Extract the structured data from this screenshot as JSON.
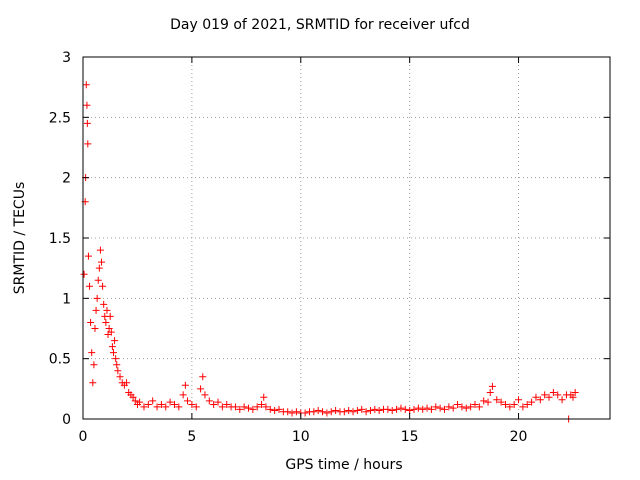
{
  "chart_data": {
    "type": "scatter",
    "title": "Day 019 of 2021, SRMTID for receiver ufcd",
    "xlabel": "GPS time / hours",
    "ylabel": "SRMTID / TECUs",
    "xlim": [
      0,
      24.2
    ],
    "ylim": [
      0,
      3
    ],
    "xticks": [
      0,
      5,
      10,
      15,
      20
    ],
    "yticks": [
      0,
      0.5,
      1,
      1.5,
      2,
      2.5,
      3
    ],
    "ytick_labels": [
      "0",
      "0.5",
      "1",
      "1.5",
      "2",
      "2.5",
      "3"
    ],
    "grid": true,
    "marker": "+",
    "color": "#ff0000",
    "series": [
      {
        "name": "SRMTID",
        "x": [
          0.05,
          0.1,
          0.12,
          0.15,
          0.18,
          0.2,
          0.22,
          0.25,
          0.3,
          0.35,
          0.4,
          0.45,
          0.5,
          0.55,
          0.6,
          0.65,
          0.7,
          0.75,
          0.8,
          0.85,
          0.9,
          0.95,
          1.0,
          1.05,
          1.1,
          1.15,
          1.2,
          1.25,
          1.3,
          1.35,
          1.4,
          1.45,
          1.5,
          1.55,
          1.6,
          1.7,
          1.8,
          1.9,
          2.0,
          2.1,
          2.2,
          2.3,
          2.4,
          2.5,
          2.6,
          2.8,
          3.0,
          3.2,
          3.4,
          3.6,
          3.8,
          4.0,
          4.2,
          4.4,
          4.6,
          4.7,
          4.8,
          5.0,
          5.2,
          5.4,
          5.5,
          5.6,
          5.8,
          6.0,
          6.2,
          6.4,
          6.6,
          6.8,
          7.0,
          7.2,
          7.4,
          7.6,
          7.8,
          8.0,
          8.2,
          8.3,
          8.4,
          8.6,
          8.8,
          9.0,
          9.2,
          9.4,
          9.6,
          9.8,
          10.0,
          10.2,
          10.4,
          10.6,
          10.8,
          11.0,
          11.2,
          11.4,
          11.6,
          11.8,
          12.0,
          12.2,
          12.4,
          12.6,
          12.8,
          13.0,
          13.2,
          13.4,
          13.6,
          13.8,
          14.0,
          14.2,
          14.4,
          14.6,
          14.8,
          15.0,
          15.2,
          15.4,
          15.6,
          15.8,
          16.0,
          16.2,
          16.4,
          16.6,
          16.8,
          17.0,
          17.2,
          17.4,
          17.6,
          17.8,
          18.0,
          18.2,
          18.4,
          18.6,
          18.7,
          18.8,
          19.0,
          19.2,
          19.4,
          19.6,
          19.8,
          20.0,
          20.2,
          20.4,
          20.6,
          20.8,
          21.0,
          21.2,
          21.4,
          21.6,
          21.8,
          22.0,
          22.2,
          22.3,
          22.4,
          22.5,
          22.6
        ],
        "y": [
          1.2,
          1.8,
          2.0,
          2.77,
          2.6,
          2.45,
          2.28,
          1.35,
          1.1,
          0.8,
          0.55,
          0.3,
          0.45,
          0.75,
          0.9,
          1.0,
          1.15,
          1.25,
          1.4,
          1.3,
          1.1,
          0.95,
          0.85,
          0.8,
          0.9,
          0.7,
          0.75,
          0.85,
          0.72,
          0.6,
          0.55,
          0.65,
          0.5,
          0.45,
          0.4,
          0.35,
          0.3,
          0.28,
          0.3,
          0.22,
          0.2,
          0.18,
          0.15,
          0.12,
          0.14,
          0.1,
          0.12,
          0.15,
          0.1,
          0.12,
          0.1,
          0.14,
          0.12,
          0.1,
          0.2,
          0.28,
          0.15,
          0.12,
          0.1,
          0.25,
          0.35,
          0.2,
          0.15,
          0.12,
          0.14,
          0.1,
          0.12,
          0.1,
          0.1,
          0.08,
          0.1,
          0.09,
          0.08,
          0.1,
          0.12,
          0.18,
          0.1,
          0.08,
          0.07,
          0.08,
          0.06,
          0.06,
          0.05,
          0.06,
          0.05,
          0.05,
          0.06,
          0.06,
          0.07,
          0.06,
          0.05,
          0.06,
          0.07,
          0.06,
          0.06,
          0.07,
          0.06,
          0.07,
          0.08,
          0.06,
          0.07,
          0.08,
          0.07,
          0.08,
          0.08,
          0.07,
          0.08,
          0.09,
          0.08,
          0.07,
          0.08,
          0.09,
          0.08,
          0.09,
          0.08,
          0.1,
          0.09,
          0.08,
          0.1,
          0.09,
          0.12,
          0.1,
          0.09,
          0.1,
          0.12,
          0.1,
          0.15,
          0.14,
          0.22,
          0.27,
          0.16,
          0.14,
          0.12,
          0.1,
          0.12,
          0.16,
          0.1,
          0.12,
          0.14,
          0.18,
          0.16,
          0.2,
          0.18,
          0.22,
          0.2,
          0.16,
          0.2,
          0.0,
          0.2,
          0.18,
          0.22
        ]
      }
    ]
  }
}
